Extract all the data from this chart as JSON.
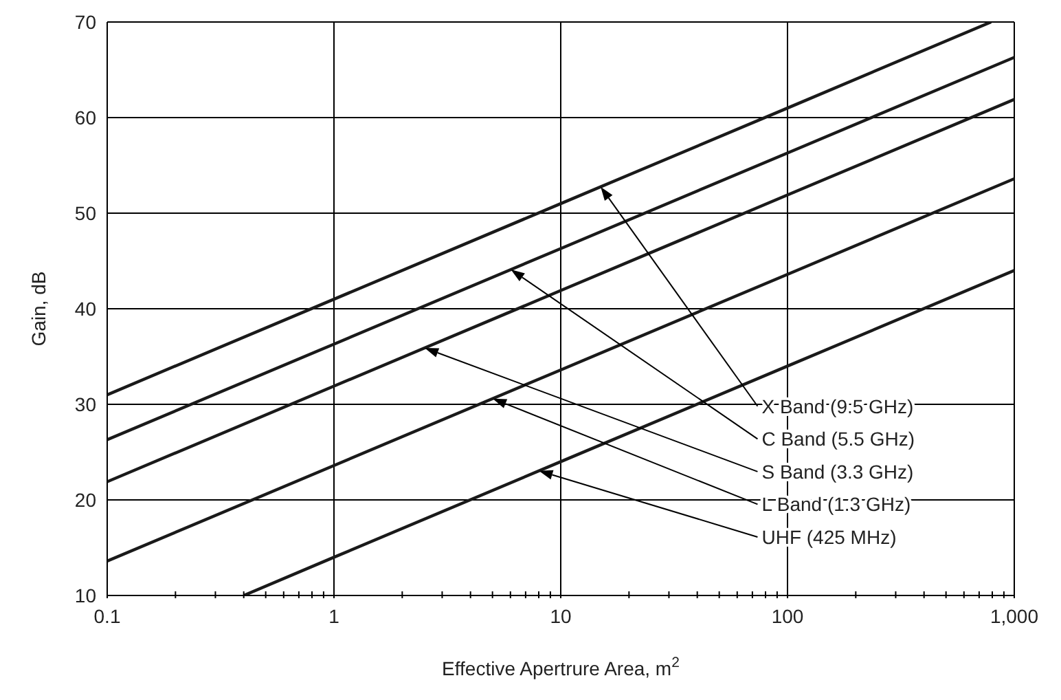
{
  "chart_data": {
    "type": "line",
    "xlabel": "Effective Apertrure Area, m$^{2}$",
    "ylabel": "Gain, dB",
    "log": "x",
    "grid": true,
    "marker": "none",
    "line_style": "solid",
    "xlim": [
      0.1,
      1000
    ],
    "ylim": [
      10,
      70
    ],
    "xticks": [
      0.1,
      {
        "value": 0.2,
        "label": null
      },
      {
        "value": 0.3,
        "label": null
      },
      {
        "value": 0.4,
        "label": null
      },
      {
        "value": 0.5,
        "label": null
      },
      {
        "value": 0.6,
        "label": null
      },
      {
        "value": 0.7,
        "label": null
      },
      {
        "value": 0.8,
        "label": null
      },
      {
        "value": 0.9,
        "label": null
      },
      1,
      {
        "value": 2,
        "label": null
      },
      {
        "value": 3,
        "label": null
      },
      {
        "value": 4,
        "label": null
      },
      {
        "value": 5,
        "label": null
      },
      {
        "value": 6,
        "label": null
      },
      {
        "value": 7,
        "label": null
      },
      {
        "value": 8,
        "label": null
      },
      {
        "value": 9,
        "label": null
      },
      10,
      {
        "value": 20,
        "label": null
      },
      {
        "value": 30,
        "label": null
      },
      {
        "value": 40,
        "label": null
      },
      {
        "value": 50,
        "label": null
      },
      {
        "value": 60,
        "label": null
      },
      {
        "value": 70,
        "label": null
      },
      {
        "value": 80,
        "label": null
      },
      {
        "value": 90,
        "label": null
      },
      100,
      {
        "value": 200,
        "label": null
      },
      {
        "value": 300,
        "label": null
      },
      {
        "value": 400,
        "label": null
      },
      {
        "value": 500,
        "label": null
      },
      {
        "value": 600,
        "label": null
      },
      {
        "value": 700,
        "label": null
      },
      {
        "value": 800,
        "label": null
      },
      {
        "value": 900,
        "label": null
      },
      {
        "value": 1000,
        "label": "1,000"
      }
    ],
    "yticks": [
      10,
      20,
      30,
      40,
      50,
      60,
      70
    ],
    "series": [
      {
        "color": "#1a1a1a",
        "x": [
          0.1,
          1,
          10,
          100,
          790
        ],
        "values": [
          31,
          41,
          51,
          61,
          70
        ]
      },
      {
        "color": "#1a1a1a",
        "x": [
          0.1,
          1,
          10,
          100,
          1000
        ],
        "values": [
          26.3,
          36.3,
          46.3,
          56.3,
          66.3
        ]
      },
      {
        "color": "#1a1a1a",
        "x": [
          0.1,
          1,
          10,
          100,
          1000
        ],
        "values": [
          21.9,
          31.9,
          41.9,
          51.9,
          61.9
        ]
      },
      {
        "color": "#1a1a1a",
        "x": [
          0.1,
          1,
          10,
          100,
          1000
        ],
        "values": [
          13.6,
          23.6,
          33.6,
          43.6,
          53.6
        ]
      },
      {
        "color": "#1a1a1a",
        "x": [
          0.4,
          1,
          10,
          100,
          1000
        ],
        "values": [
          10,
          14,
          24,
          34,
          44
        ]
      }
    ],
    "annotations": [
      "X Band (9.5 GHz)",
      "C Band (5.5 GHz)",
      "S Band (3.3 GHz)",
      "L Band (1.3 GHz)",
      "UHF (425 MHz)"
    ]
  }
}
